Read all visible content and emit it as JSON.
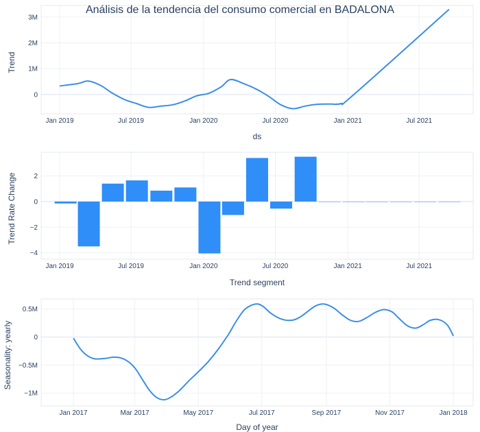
{
  "title": "Análisis de la tendencia del consumo comercial en BADALONA",
  "colors": {
    "trend_line": "#3a8ee6",
    "bars": "#2f8ef7",
    "season_line": "#3a8ee6"
  },
  "chart_data": [
    {
      "type": "line",
      "name": "trend",
      "xlabel": "ds",
      "ylabel": "Trend",
      "x_dates": [
        "2019-01-01",
        "2019-02-15",
        "2019-03-15",
        "2019-04-15",
        "2019-05-15",
        "2019-06-15",
        "2019-07-15",
        "2019-08-15",
        "2019-09-15",
        "2019-10-15",
        "2019-11-15",
        "2019-12-15",
        "2020-01-15",
        "2020-02-15",
        "2020-03-10",
        "2020-04-15",
        "2020-05-15",
        "2020-06-15",
        "2020-07-15",
        "2020-08-15",
        "2020-09-15",
        "2020-10-15",
        "2020-11-15",
        "2020-12-15",
        "2021-01-15",
        "2021-09-15"
      ],
      "y": [
        0.33,
        0.42,
        0.52,
        0.35,
        0.05,
        -0.2,
        -0.35,
        -0.5,
        -0.45,
        -0.4,
        -0.25,
        -0.05,
        0.05,
        0.3,
        0.58,
        0.4,
        0.2,
        -0.08,
        -0.4,
        -0.55,
        -0.45,
        -0.38,
        -0.37,
        -0.35,
        -0.02,
        3.3
      ],
      "x_range": [
        "2018-11-15",
        "2021-11-15"
      ],
      "ylim": [
        -0.75,
        3.45
      ],
      "y_ticks": [
        0,
        1,
        2,
        3
      ],
      "y_tick_labels": [
        "0",
        "1M",
        "2M",
        "3M"
      ],
      "x_ticks": [
        "2019-01-01",
        "2019-07-01",
        "2020-01-01",
        "2020-07-01",
        "2021-01-01",
        "2021-07-01"
      ],
      "x_tick_labels": [
        "Jan 2019",
        "Jul 2019",
        "Jan 2020",
        "Jul 2020",
        "Jan 2021",
        "Jul 2021"
      ]
    },
    {
      "type": "bar",
      "name": "trend_rate_change",
      "xlabel": "Trend segment",
      "ylabel": "Trend Rate Change",
      "x_dates": [
        "2019-01-16",
        "2019-03-16",
        "2019-05-16",
        "2019-07-16",
        "2019-09-16",
        "2019-11-16",
        "2020-01-16",
        "2020-03-16",
        "2020-05-16",
        "2020-07-16",
        "2020-09-16",
        "2020-11-16",
        "2021-01-16",
        "2021-03-16",
        "2021-05-16",
        "2021-07-16",
        "2021-09-16"
      ],
      "values": [
        -0.15,
        -3.5,
        1.4,
        1.65,
        0.85,
        1.1,
        -4.05,
        -1.05,
        3.4,
        -0.55,
        3.5,
        0,
        0,
        0,
        0,
        0,
        0
      ],
      "x_range": [
        "2018-11-15",
        "2021-11-15"
      ],
      "ylim": [
        -4.5,
        3.85
      ],
      "y_ticks": [
        -4,
        -2,
        0,
        2
      ],
      "y_tick_labels": [
        "−4",
        "−2",
        "0",
        "2"
      ],
      "x_ticks": [
        "2019-01-01",
        "2019-07-01",
        "2020-01-01",
        "2020-07-01",
        "2021-01-01",
        "2021-07-01"
      ],
      "x_tick_labels": [
        "Jan 2019",
        "Jul 2019",
        "Jan 2020",
        "Jul 2020",
        "Jan 2021",
        "Jul 2021"
      ]
    },
    {
      "type": "line",
      "name": "seasonality_yearly",
      "xlabel": "Day of year",
      "ylabel": "Seasonality: yearly",
      "x_dates": [
        "2017-01-01",
        "2017-01-08",
        "2017-01-15",
        "2017-01-22",
        "2017-02-01",
        "2017-02-08",
        "2017-02-15",
        "2017-02-22",
        "2017-03-01",
        "2017-03-08",
        "2017-03-15",
        "2017-03-22",
        "2017-03-29",
        "2017-04-04",
        "2017-04-12",
        "2017-04-22",
        "2017-05-01",
        "2017-05-10",
        "2017-05-20",
        "2017-05-30",
        "2017-06-07",
        "2017-06-15",
        "2017-06-25",
        "2017-07-02",
        "2017-07-10",
        "2017-07-20",
        "2017-07-30",
        "2017-08-07",
        "2017-08-15",
        "2017-08-22",
        "2017-08-30",
        "2017-09-08",
        "2017-09-16",
        "2017-09-24",
        "2017-10-02",
        "2017-10-10",
        "2017-10-18",
        "2017-10-26",
        "2017-11-03",
        "2017-11-10",
        "2017-11-18",
        "2017-11-26",
        "2017-12-03",
        "2017-12-10",
        "2017-12-18",
        "2017-12-26",
        "2018-01-01"
      ],
      "y": [
        -0.02,
        -0.22,
        -0.34,
        -0.39,
        -0.38,
        -0.36,
        -0.37,
        -0.43,
        -0.55,
        -0.75,
        -0.95,
        -1.08,
        -1.12,
        -1.08,
        -0.97,
        -0.78,
        -0.62,
        -0.45,
        -0.22,
        0.05,
        0.3,
        0.5,
        0.59,
        0.55,
        0.42,
        0.32,
        0.3,
        0.36,
        0.47,
        0.56,
        0.59,
        0.52,
        0.4,
        0.3,
        0.28,
        0.35,
        0.44,
        0.49,
        0.45,
        0.33,
        0.2,
        0.16,
        0.22,
        0.3,
        0.31,
        0.22,
        0.02
      ],
      "x_range": [
        "2016-12-01",
        "2018-01-20"
      ],
      "ylim": [
        -1.23,
        0.68
      ],
      "y_ticks": [
        -1,
        -0.5,
        0,
        0.5
      ],
      "y_tick_labels": [
        "−1M",
        "−0.5M",
        "0",
        "0.5M"
      ],
      "x_ticks": [
        "2017-01-01",
        "2017-03-01",
        "2017-05-01",
        "2017-07-01",
        "2017-09-01",
        "2017-11-01",
        "2018-01-01"
      ],
      "x_tick_labels": [
        "Jan 2017",
        "Mar 2017",
        "May 2017",
        "Jul 2017",
        "Sep 2017",
        "Nov 2017",
        "Jan 2018"
      ]
    }
  ]
}
